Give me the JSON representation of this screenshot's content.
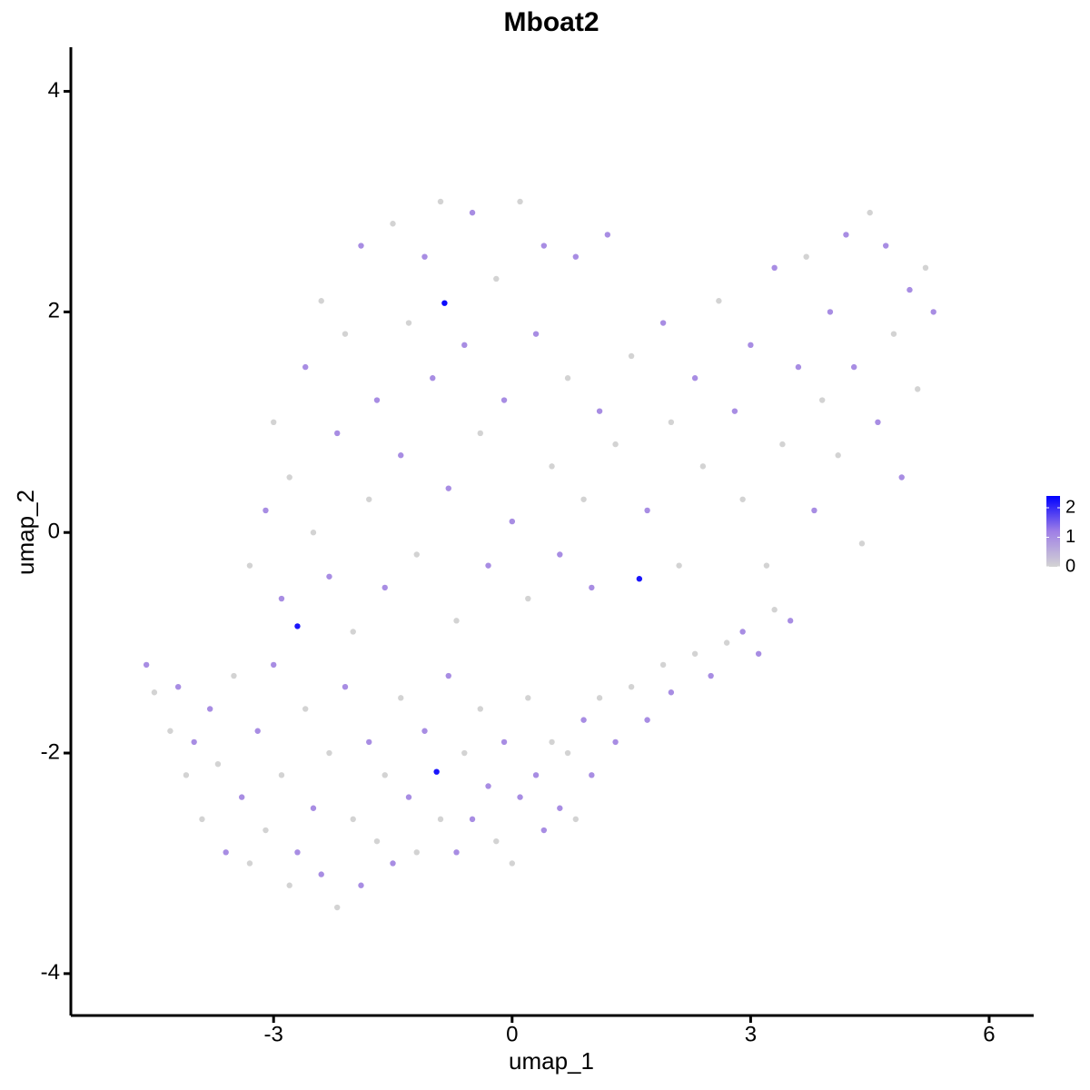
{
  "chart_data": {
    "type": "scatter",
    "title": "Mboat2",
    "x_label": "umap_1",
    "y_label": "umap_2",
    "xlim": [
      -5.55,
      6.56
    ],
    "ylim": [
      -4.38,
      4.4
    ],
    "xticks": [
      -3,
      0,
      3,
      6
    ],
    "yticks": [
      -4,
      -2,
      0,
      2,
      4
    ],
    "x": [
      -4.6,
      -4.5,
      -4.3,
      -4.2,
      -4.1,
      -4.0,
      -3.9,
      -3.8,
      -3.7,
      -3.6,
      -3.5,
      -3.4,
      -3.3,
      -3.2,
      -3.1,
      -3.0,
      -2.9,
      -2.8,
      -2.7,
      -2.6,
      -2.5,
      -2.4,
      -2.3,
      -2.2,
      -2.1,
      -2.0,
      -1.9,
      -1.8,
      -1.7,
      -1.6,
      -1.5,
      -1.4,
      -1.3,
      -1.2,
      -1.1,
      -0.95,
      -0.9,
      -0.8,
      -0.7,
      -0.6,
      -0.5,
      -0.4,
      -0.3,
      -0.2,
      -0.1,
      0.0,
      0.1,
      0.2,
      0.3,
      0.4,
      0.5,
      0.6,
      0.7,
      0.8,
      0.9,
      1.0,
      1.1,
      1.3,
      1.5,
      1.7,
      1.9,
      2.0,
      2.3,
      2.5,
      2.7,
      2.9,
      3.1,
      3.3,
      3.5,
      -3.3,
      -3.1,
      -3.0,
      -2.9,
      -2.8,
      -2.7,
      -2.6,
      -2.5,
      -2.4,
      -2.3,
      -2.2,
      -2.1,
      -2.0,
      -1.9,
      -1.8,
      -1.7,
      -1.6,
      -1.5,
      -1.4,
      -1.3,
      -1.2,
      -1.1,
      -1.0,
      -0.9,
      -0.85,
      -0.8,
      -0.7,
      -0.6,
      -0.5,
      -0.4,
      -0.3,
      -0.2,
      -0.1,
      0.0,
      0.1,
      0.2,
      0.3,
      0.4,
      0.5,
      0.6,
      0.7,
      0.8,
      0.9,
      1.0,
      1.1,
      1.2,
      1.3,
      1.5,
      1.6,
      1.7,
      1.9,
      2.0,
      2.1,
      2.3,
      2.4,
      2.6,
      2.8,
      2.9,
      3.0,
      3.2,
      3.3,
      3.4,
      3.6,
      3.7,
      3.8,
      3.9,
      4.0,
      4.1,
      4.2,
      4.3,
      4.4,
      4.5,
      4.6,
      4.7,
      4.8,
      4.9,
      5.0,
      5.1,
      5.2,
      5.3
    ],
    "y": [
      -1.2,
      -1.45,
      -1.8,
      -1.4,
      -2.2,
      -1.9,
      -2.6,
      -1.6,
      -2.1,
      -2.9,
      -1.3,
      -2.4,
      -3.0,
      -1.8,
      -2.7,
      -1.2,
      -2.2,
      -3.2,
      -2.9,
      -1.6,
      -2.5,
      -3.1,
      -2.0,
      -3.4,
      -1.4,
      -2.6,
      -3.2,
      -1.9,
      -2.8,
      -2.2,
      -3.0,
      -1.5,
      -2.4,
      -2.9,
      -1.8,
      -2.17,
      -2.6,
      -1.3,
      -2.9,
      -2.0,
      -2.6,
      -1.6,
      -2.3,
      -2.8,
      -1.9,
      -3.0,
      -2.4,
      -1.5,
      -2.2,
      -2.7,
      -1.9,
      -2.5,
      -2.0,
      -2.6,
      -1.7,
      -2.2,
      -1.5,
      -1.9,
      -1.4,
      -1.7,
      -1.2,
      -1.45,
      -1.1,
      -1.3,
      -1.0,
      -0.9,
      -1.1,
      -0.7,
      -0.8,
      -0.3,
      0.2,
      1.0,
      -0.6,
      0.5,
      -0.85,
      1.5,
      0.0,
      2.1,
      -0.4,
      0.9,
      1.8,
      -0.9,
      2.6,
      0.3,
      1.2,
      -0.5,
      2.8,
      0.7,
      1.9,
      -0.2,
      2.5,
      1.4,
      3.0,
      2.08,
      0.4,
      -0.8,
      1.7,
      2.9,
      0.9,
      -0.3,
      2.3,
      1.2,
      0.1,
      3.0,
      -0.6,
      1.8,
      2.6,
      0.6,
      -0.2,
      1.4,
      2.5,
      0.3,
      -0.5,
      1.1,
      2.7,
      0.8,
      1.6,
      -0.42,
      0.2,
      1.9,
      1.0,
      -0.3,
      1.4,
      0.6,
      2.1,
      1.1,
      0.3,
      1.7,
      -0.3,
      2.4,
      0.8,
      1.5,
      2.5,
      0.2,
      1.2,
      2.0,
      0.7,
      2.7,
      1.5,
      -0.1,
      2.9,
      1.0,
      2.6,
      1.8,
      0.5,
      2.2,
      1.3,
      2.4,
      2.0
    ],
    "expression": [
      1,
      0,
      0,
      1,
      0,
      1,
      0,
      1,
      0,
      1,
      0,
      1,
      0,
      1,
      0,
      1,
      0,
      0,
      1,
      0,
      1,
      1,
      0,
      0,
      1,
      0,
      1,
      1,
      0,
      0,
      1,
      0,
      1,
      0,
      1,
      2.2,
      0,
      1,
      1,
      0,
      1,
      0,
      1,
      0,
      1,
      0,
      1,
      0,
      1,
      1,
      0,
      1,
      0,
      0,
      1,
      1,
      0,
      1,
      0,
      1,
      0,
      1,
      0,
      1,
      0,
      1,
      1,
      0,
      1,
      0,
      1,
      0,
      1,
      0,
      2.2,
      1,
      0,
      0,
      1,
      1,
      0,
      0,
      1,
      0,
      1,
      1,
      0,
      1,
      0,
      0,
      1,
      1,
      0,
      2.3,
      1,
      0,
      1,
      1,
      0,
      1,
      0,
      1,
      1,
      0,
      0,
      1,
      1,
      0,
      1,
      0,
      1,
      0,
      1,
      1,
      1,
      0,
      0,
      2.2,
      1,
      1,
      0,
      0,
      1,
      0,
      0,
      1,
      0,
      1,
      0,
      1,
      0,
      1,
      0,
      1,
      0,
      1,
      0,
      1,
      1,
      0,
      0,
      1,
      1,
      0,
      1,
      1,
      0,
      0,
      1
    ],
    "colorbar": {
      "limits": [
        0,
        2.4
      ],
      "ticks": [
        0,
        1,
        2
      ],
      "colors": [
        "#d3d3d3",
        "#9f7fe6",
        "#0000ff"
      ]
    }
  }
}
